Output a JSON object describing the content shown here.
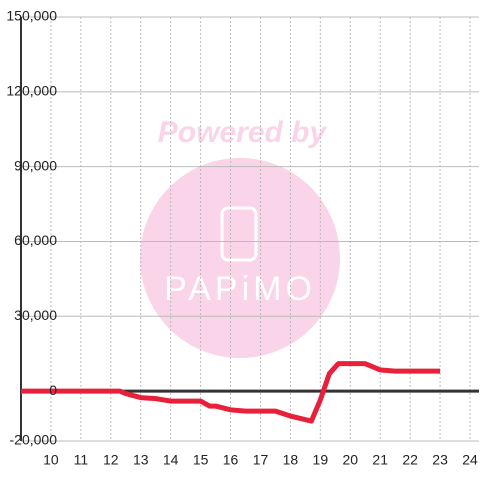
{
  "chart_data": {
    "type": "line",
    "watermark": {
      "text": "Powered by",
      "logo": "PAPiMO"
    },
    "x": [
      9,
      12.3,
      12.5,
      13,
      13.5,
      14,
      15,
      15.3,
      15.5,
      16,
      16.5,
      17,
      17.5,
      18,
      18.7,
      19,
      19.3,
      19.6,
      20,
      20.5,
      21,
      21.5,
      23
    ],
    "series": [
      {
        "color": "#e8203a",
        "values": [
          0,
          0,
          -1000,
          -2600,
          -3000,
          -4000,
          -4000,
          -6000,
          -6000,
          -7500,
          -8000,
          -8000,
          -8000,
          -10000,
          -12000,
          -3500,
          7000,
          11000,
          11000,
          11000,
          8500,
          8000,
          8000
        ]
      }
    ],
    "xlim": [
      9,
      24.3
    ],
    "xticks": [
      10,
      11,
      12,
      13,
      14,
      15,
      16,
      17,
      18,
      19,
      20,
      21,
      22,
      23,
      24
    ],
    "ylim": [
      -20000,
      150000
    ],
    "yticks": [
      {
        "value": -20000,
        "label": "-20,000"
      },
      0,
      {
        "value": 30000,
        "label": "30,000"
      },
      {
        "value": 60000,
        "label": "60,000"
      },
      {
        "value": 90000,
        "label": "90,000"
      },
      {
        "value": 120000,
        "label": "120,000"
      },
      {
        "value": 150000,
        "label": "150,000"
      }
    ],
    "grid": true
  }
}
